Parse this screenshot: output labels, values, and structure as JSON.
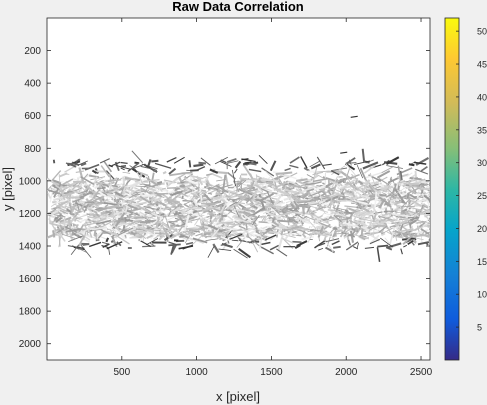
{
  "chart_data": {
    "type": "scatter",
    "title": "Raw Data Correlation",
    "xlabel": "x [pixel]",
    "ylabel": "y [pixel]",
    "xlim": [
      0,
      2560
    ],
    "ylim": [
      2100,
      0
    ],
    "x_ticks": [
      500,
      1000,
      1500,
      2000,
      2500
    ],
    "y_ticks": [
      200,
      400,
      600,
      800,
      1000,
      1200,
      1400,
      1600,
      1800,
      2000
    ],
    "grid": false,
    "band": {
      "x_range": [
        20,
        2560
      ],
      "y_range": [
        880,
        1420
      ],
      "dense_core_y": [
        1000,
        1340
      ]
    },
    "stray_vectors": [
      {
        "x": 2050,
        "y": 610
      },
      {
        "x": 1320,
        "y": 870
      },
      {
        "x": 1340,
        "y": 890
      },
      {
        "x": 1980,
        "y": 830
      }
    ],
    "colorbar": {
      "ticks": [
        5,
        10,
        15,
        20,
        25,
        30,
        35,
        40,
        45,
        50
      ],
      "range": [
        0,
        52
      ],
      "colormap": "parula"
    }
  }
}
